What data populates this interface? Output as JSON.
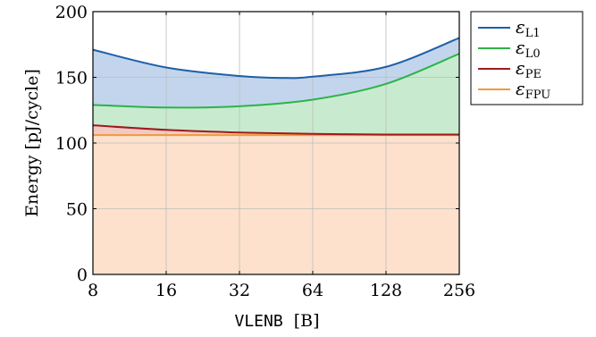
{
  "chart_data": {
    "type": "area",
    "xlabel_mono": "VLENB",
    "xlabel_unit": "[B]",
    "ylabel": "Energy  [pJ/cycle]",
    "x_scale": "log2",
    "xlim": [
      8,
      256
    ],
    "ylim": [
      0,
      200
    ],
    "x_ticks": [
      "8",
      "16",
      "32",
      "64",
      "128",
      "256"
    ],
    "y_ticks": [
      "0",
      "50",
      "100",
      "150",
      "200"
    ],
    "grid": true,
    "legend_placement": "outside-right-top",
    "series": [
      {
        "name": "ε",
        "sub": "L1",
        "color": "#1f5fa8",
        "fill": "#c3d5ec",
        "x": [
          8,
          16,
          32,
          48,
          64,
          128,
          256
        ],
        "values": [
          171,
          157.5,
          151,
          149.5,
          150.5,
          158,
          180
        ]
      },
      {
        "name": "ε",
        "sub": "L0",
        "color": "#2db34a",
        "fill": "#c8ebcf",
        "x": [
          8,
          16,
          32,
          64,
          128,
          256
        ],
        "values": [
          129,
          127,
          128,
          133,
          145,
          168
        ]
      },
      {
        "name": "ε",
        "sub": "PE",
        "color": "#9e1b1b",
        "fill": "#f2c9c4",
        "x": [
          8,
          16,
          32,
          64,
          128,
          256
        ],
        "values": [
          113.5,
          110,
          108,
          107,
          106.5,
          106.5
        ]
      },
      {
        "name": "ε",
        "sub": "FPU",
        "color": "#f0993c",
        "fill": "#fde1cc",
        "x": [
          8,
          16,
          32,
          64,
          128,
          256
        ],
        "values": [
          106,
          106,
          106,
          106,
          106,
          106
        ]
      }
    ]
  }
}
